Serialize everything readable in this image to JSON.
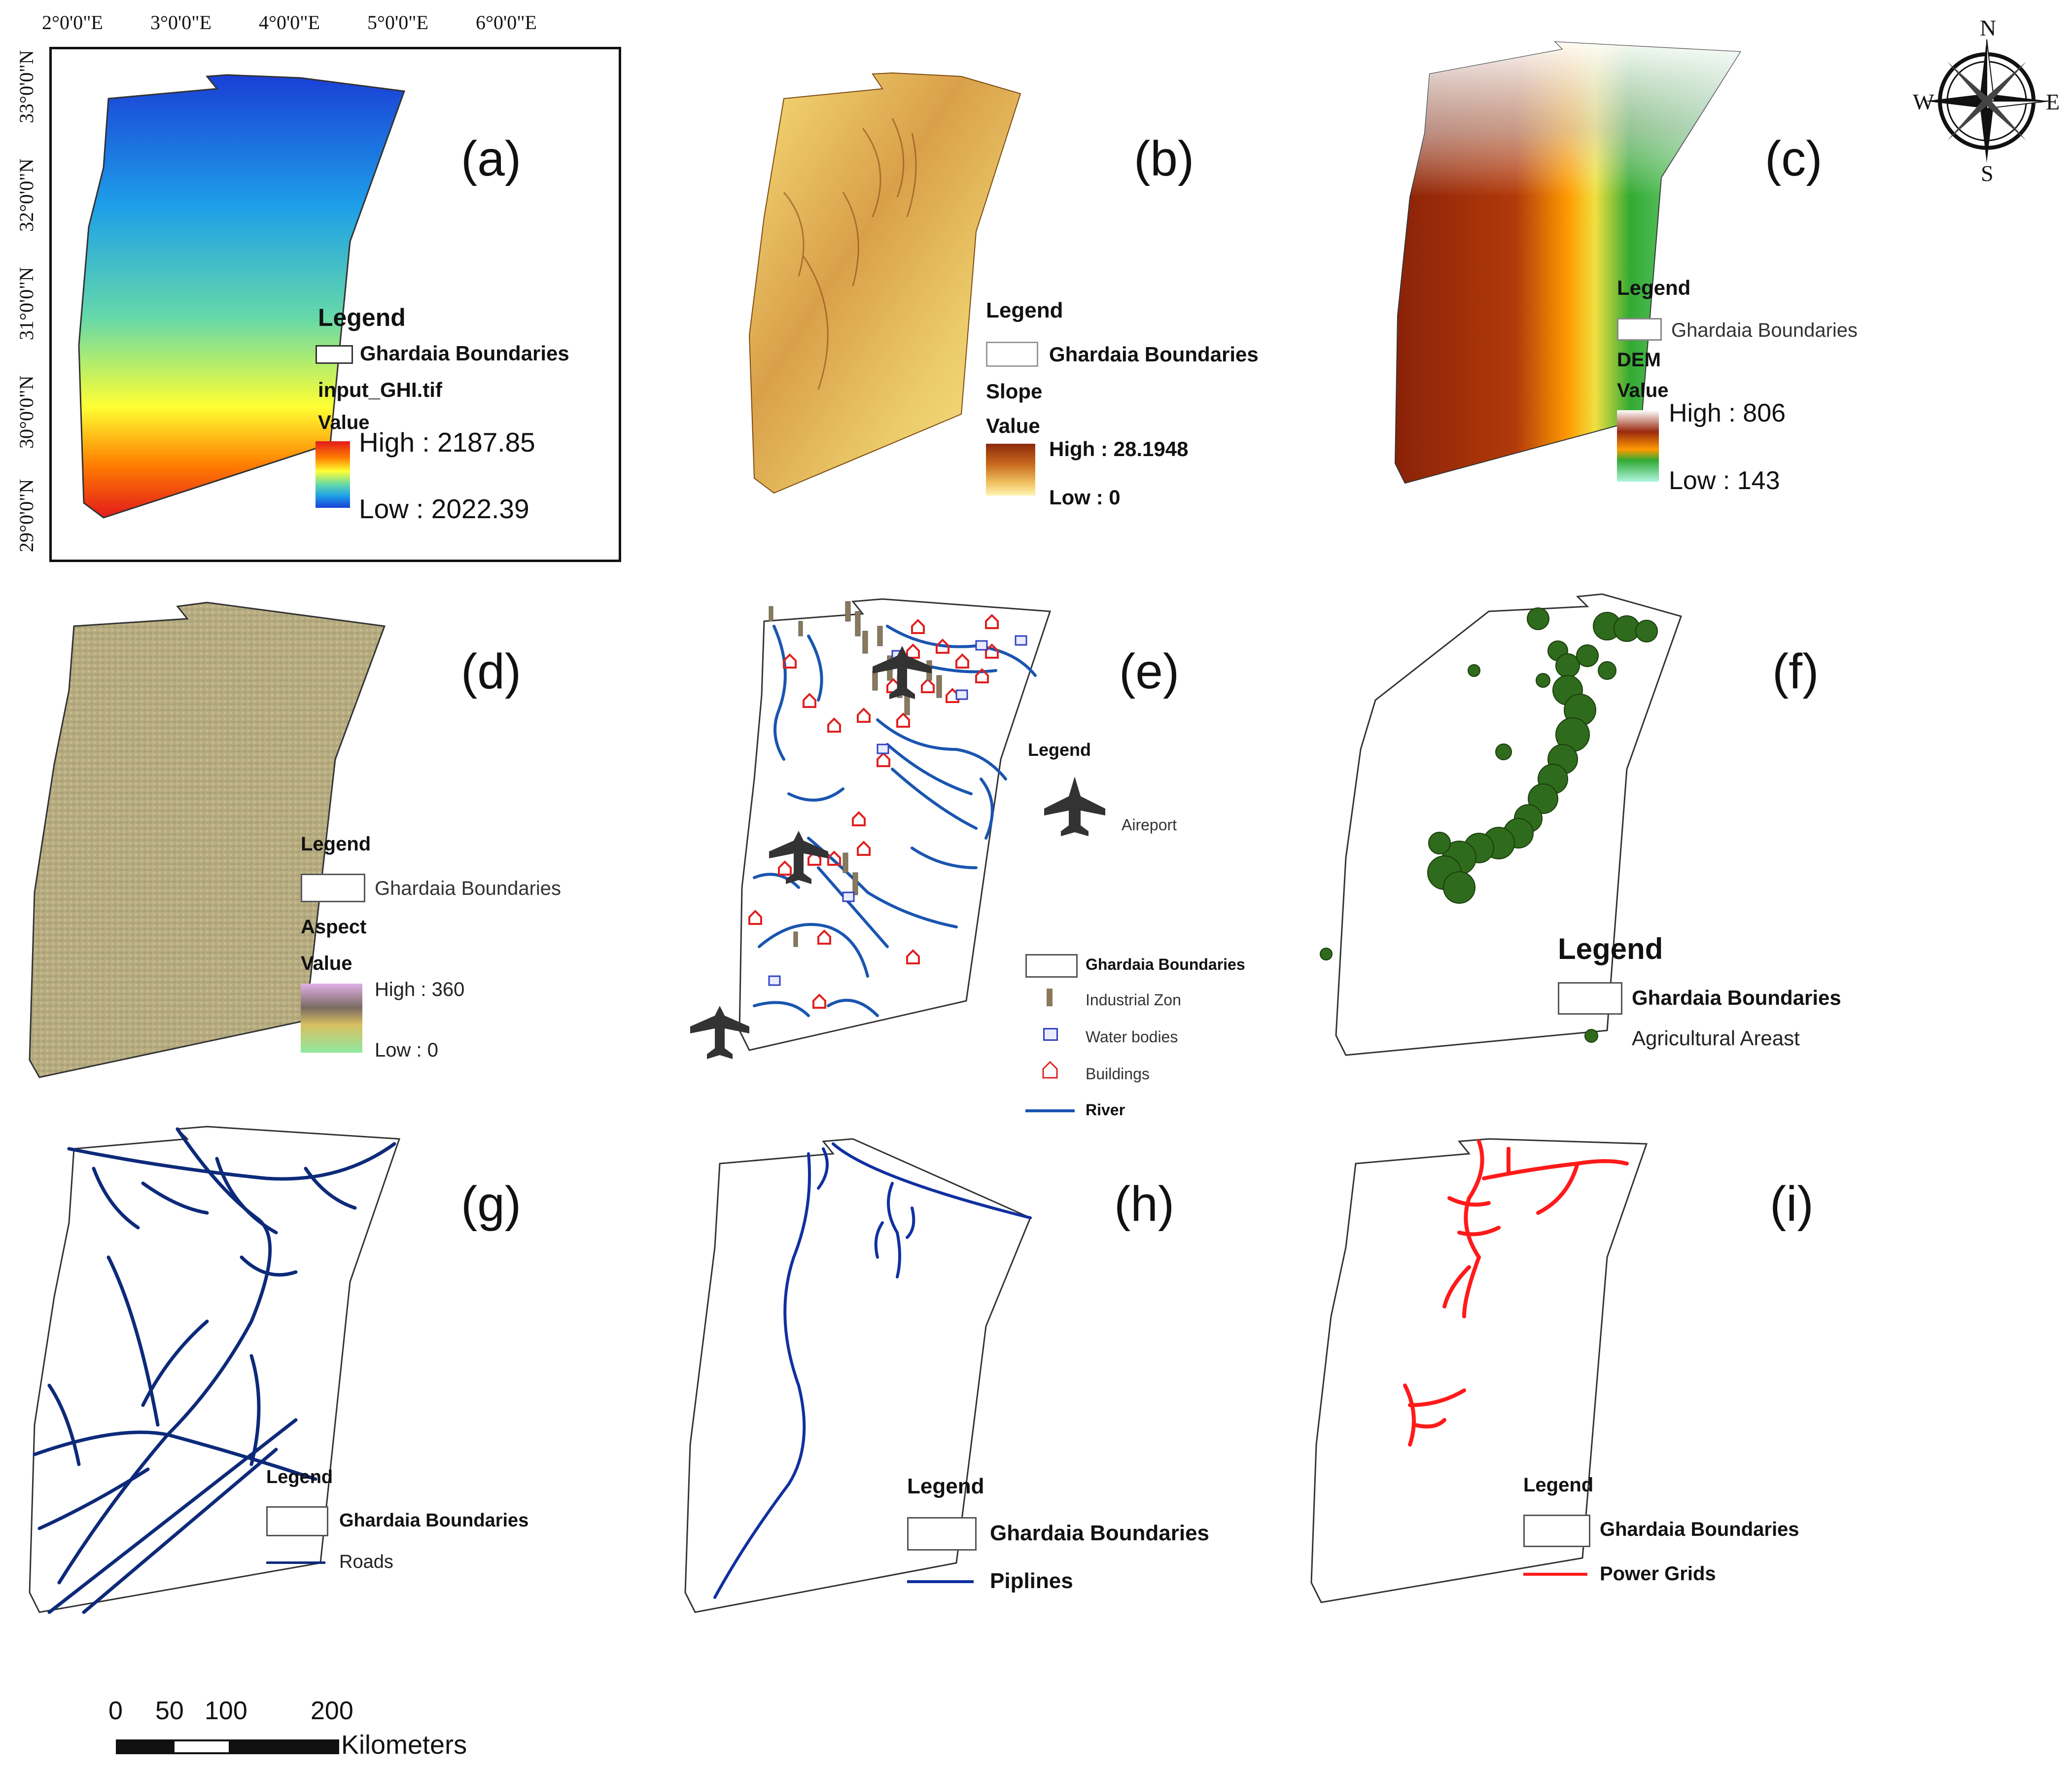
{
  "frame_a": {
    "lon_ticks": [
      "2°0'0\"E",
      "3°0'0\"E",
      "4°0'0\"E",
      "5°0'0\"E",
      "6°0'0\"E"
    ],
    "lat_ticks": [
      "33°0'0\"N",
      "32°0'0\"N",
      "31°0'0\"N",
      "30°0'0\"N",
      "29°0'0\"N"
    ]
  },
  "compass": {
    "n": "N",
    "s": "S",
    "e": "E",
    "w": "W"
  },
  "panels": {
    "a": {
      "label": "(a)",
      "legend_title": "Legend",
      "boundary": "Ghardaia Boundaries",
      "layer": "input_GHI.tif",
      "value": "Value",
      "high": "High : 2187.85",
      "low": "Low : 2022.39",
      "ramp_colors": [
        "#e31a1c",
        "#ff7f00",
        "#ffff33",
        "#66d9a8",
        "#1ea0e8",
        "#1a3fd6"
      ]
    },
    "b": {
      "label": "(b)",
      "legend_title": "Legend",
      "boundary": "Ghardaia Boundaries",
      "layer": "Slope",
      "value": "Value",
      "high": "High : 28.1948",
      "low": "Low : 0",
      "ramp_colors": [
        "#8b2a0a",
        "#c86a1e",
        "#f0c060",
        "#fff4b0"
      ]
    },
    "c": {
      "label": "(c)",
      "legend_title": "Legend",
      "boundary": "Ghardaia Boundaries",
      "layer": "DEM",
      "value": "Value",
      "high": "High : 806",
      "low": "Low : 143",
      "ramp_colors": [
        "#ffffff",
        "#9a2a10",
        "#ff9a00",
        "#33aa33",
        "#aef5e0"
      ]
    },
    "d": {
      "label": "(d)",
      "legend_title": "Legend",
      "boundary": "Ghardaia Boundaries",
      "layer": "Aspect",
      "value": "Value",
      "high": "High : 360",
      "low": "Low : 0",
      "ramp_colors": [
        "#e0b0e8",
        "#8a7a6a",
        "#d8c060",
        "#90e8a0"
      ]
    },
    "e": {
      "label": "(e)",
      "legend_title": "Legend",
      "airport": "Aireport",
      "boundary": "Ghardaia Boundaries",
      "industrial": "Industrial Zon",
      "water": "Water bodies",
      "buildings": "Buildings",
      "river": "River"
    },
    "f": {
      "label": "(f)",
      "legend_title": "Legend",
      "boundary": "Ghardaia Boundaries",
      "agri": "Agricultural Areast"
    },
    "g": {
      "label": "(g)",
      "legend_title": "Legend",
      "boundary": "Ghardaia Boundaries",
      "roads": "Roads"
    },
    "h": {
      "label": "(h)",
      "legend_title": "Legend",
      "boundary": "Ghardaia Boundaries",
      "pipelines": "Piplines"
    },
    "i": {
      "label": "(i)",
      "legend_title": "Legend",
      "boundary": "Ghardaia Boundaries",
      "power": "Power Grids"
    }
  },
  "scale_bar": {
    "ticks": [
      "0",
      "50",
      "100",
      "200"
    ],
    "unit": "Kilometers"
  },
  "colors": {
    "roads": "#0d2a7a",
    "pipelines": "#1030a0",
    "rivers": "#1a55b0",
    "power": "#ff1a1a",
    "agri": "#2f6b1c",
    "buildings": "#e02020"
  }
}
